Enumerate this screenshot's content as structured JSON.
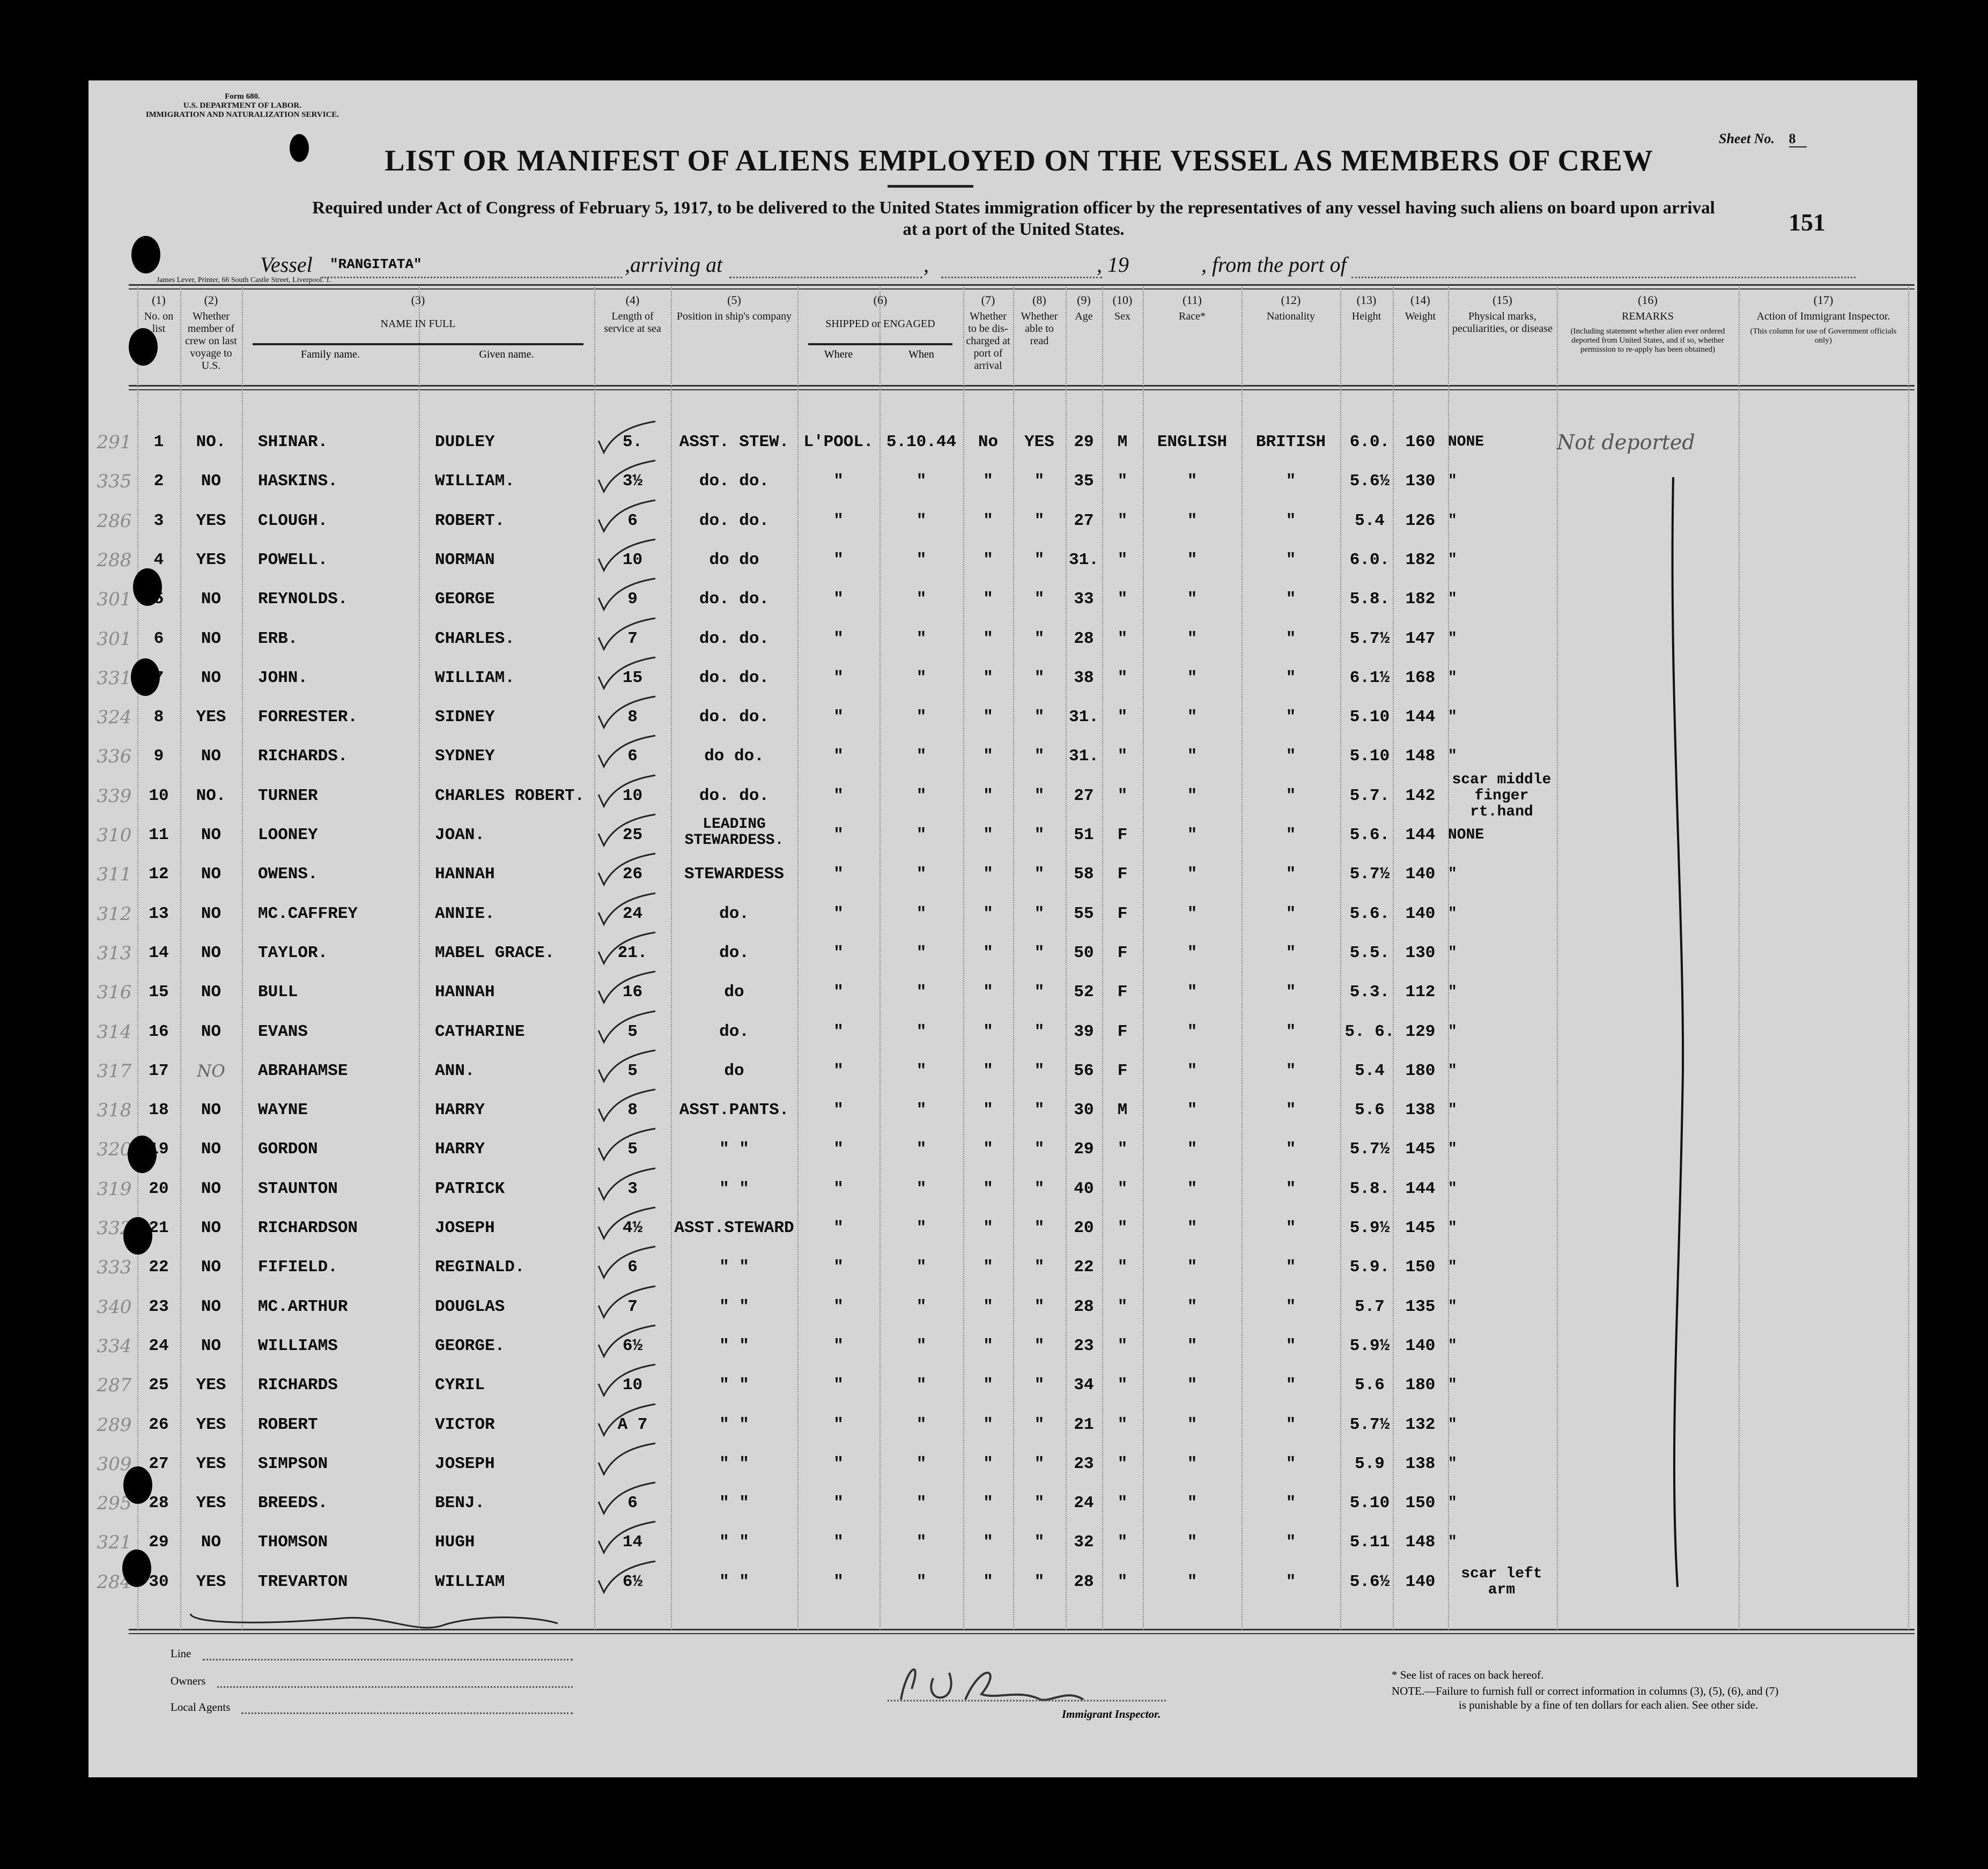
{
  "form": {
    "form_no": "Form 680.",
    "department": "U.S. DEPARTMENT OF LABOR.",
    "service": "IMMIGRATION AND NATURALIZATION SERVICE.",
    "sheet_label": "Sheet No.",
    "sheet_no": "8",
    "page_number": "151",
    "title": "LIST OR MANIFEST OF ALIENS EMPLOYED ON THE VESSEL AS MEMBERS OF CREW",
    "subtitle_1": "Required under Act of Congress of February 5, 1917, to be delivered to the United States immigration officer by the representatives of any vessel having such aliens on board upon arrival",
    "subtitle_2": "at a port of the United States.",
    "vessel_label": "Vessel",
    "vessel_name": "\"RANGITATA\"",
    "arriving_label": ",arriving at",
    "comma": ",",
    "year_label": ", 19",
    "from_port_label": ", from the port of",
    "printer": "James Lever, Printer, 66 South Castle Street, Liverpool. 1."
  },
  "header": {
    "columns": [
      {
        "num": "(1)",
        "label": "No. on list"
      },
      {
        "num": "(2)",
        "label": "Whether member of crew on last voyage to U.S."
      },
      {
        "num": "(3)",
        "label": "NAME IN FULL",
        "sub": [
          "Family name.",
          "Given name."
        ]
      },
      {
        "num": "(4)",
        "label": "Length of service at sea"
      },
      {
        "num": "(5)",
        "label": "Position in ship's company"
      },
      {
        "num": "(6)",
        "label": "SHIPPED or ENGAGED",
        "sub": [
          "Where",
          "When"
        ]
      },
      {
        "num": "(7)",
        "label": "Whether to be dis-charged at port of arrival"
      },
      {
        "num": "(8)",
        "label": "Whether able to read"
      },
      {
        "num": "(9)",
        "label": "Age"
      },
      {
        "num": "(10)",
        "label": "Sex"
      },
      {
        "num": "(11)",
        "label": "Race*"
      },
      {
        "num": "(12)",
        "label": "Nationality"
      },
      {
        "num": "(13)",
        "label": "Height"
      },
      {
        "num": "(14)",
        "label": "Weight"
      },
      {
        "num": "(15)",
        "label": "Physical marks, peculiarities, or disease"
      },
      {
        "num": "(16)",
        "label": "REMARKS",
        "note": "(Including statement whether alien ever ordered deported from United States, and if so, whether permission to re-apply has been obtained)"
      },
      {
        "num": "(17)",
        "label": "Action of Immigrant Inspector.",
        "note": "(This column for use of Government officials only)"
      }
    ]
  },
  "rows": [
    {
      "margin": "291",
      "no": "1",
      "prev": "NO.",
      "family": "SHINAR.",
      "given": "DUDLEY",
      "service": "5.",
      "position": "ASST. STEW.",
      "where": "L'POOL.",
      "when": "5.10.44",
      "disch": "No",
      "read": "YES",
      "age": "29",
      "sex": "M",
      "race": "ENGLISH",
      "nat": "BRITISH",
      "height": "6.0.",
      "weight": "160",
      "marks": "NONE",
      "remarks": "Not deported"
    },
    {
      "margin": "335",
      "no": "2",
      "prev": "NO",
      "family": "HASKINS.",
      "given": "WILLIAM.",
      "service": "3½",
      "position": "do. do.",
      "where": "\"",
      "when": "\"",
      "disch": "\"",
      "read": "\"",
      "age": "35",
      "sex": "\"",
      "race": "\"",
      "nat": "\"",
      "height": "5.6½",
      "weight": "130",
      "marks": "\"",
      "remarks": ""
    },
    {
      "margin": "286",
      "no": "3",
      "prev": "YES",
      "family": "CLOUGH.",
      "given": "ROBERT.",
      "service": "6",
      "position": "do. do.",
      "where": "\"",
      "when": "\"",
      "disch": "\"",
      "read": "\"",
      "age": "27",
      "sex": "\"",
      "race": "\"",
      "nat": "\"",
      "height": "5.4",
      "weight": "126",
      "marks": "\"",
      "remarks": ""
    },
    {
      "margin": "288",
      "no": "4",
      "prev": "YES",
      "family": "POWELL.",
      "given": "NORMAN",
      "service": "10",
      "position": "do do",
      "where": "\"",
      "when": "\"",
      "disch": "\"",
      "read": "\"",
      "age": "31.",
      "sex": "\"",
      "race": "\"",
      "nat": "\"",
      "height": "6.0.",
      "weight": "182",
      "marks": "\"",
      "remarks": ""
    },
    {
      "margin": "301",
      "no": "5",
      "prev": "NO",
      "family": "REYNOLDS.",
      "given": "GEORGE",
      "service": "9",
      "position": "do. do.",
      "where": "\"",
      "when": "\"",
      "disch": "\"",
      "read": "\"",
      "age": "33",
      "sex": "\"",
      "race": "\"",
      "nat": "\"",
      "height": "5.8.",
      "weight": "182",
      "marks": "\"",
      "remarks": ""
    },
    {
      "margin": "301",
      "no": "6",
      "prev": "NO",
      "family": "ERB.",
      "given": "CHARLES.",
      "service": "7",
      "position": "do. do.",
      "where": "\"",
      "when": "\"",
      "disch": "\"",
      "read": "\"",
      "age": "28",
      "sex": "\"",
      "race": "\"",
      "nat": "\"",
      "height": "5.7½",
      "weight": "147",
      "marks": "\"",
      "remarks": ""
    },
    {
      "margin": "331",
      "no": "7",
      "prev": "NO",
      "family": "JOHN.",
      "given": "WILLIAM.",
      "service": "15",
      "position": "do. do.",
      "where": "\"",
      "when": "\"",
      "disch": "\"",
      "read": "\"",
      "age": "38",
      "sex": "\"",
      "race": "\"",
      "nat": "\"",
      "height": "6.1½",
      "weight": "168",
      "marks": "\"",
      "remarks": ""
    },
    {
      "margin": "324",
      "no": "8",
      "prev": "YES",
      "family": "FORRESTER.",
      "given": "SIDNEY",
      "service": "8",
      "position": "do. do.",
      "where": "\"",
      "when": "\"",
      "disch": "\"",
      "read": "\"",
      "age": "31.",
      "sex": "\"",
      "race": "\"",
      "nat": "\"",
      "height": "5.10",
      "weight": "144",
      "marks": "\"",
      "remarks": ""
    },
    {
      "margin": "336",
      "no": "9",
      "prev": "NO",
      "family": "RICHARDS.",
      "given": "SYDNEY",
      "service": "6",
      "position": "do do.",
      "where": "\"",
      "when": "\"",
      "disch": "\"",
      "read": "\"",
      "age": "31.",
      "sex": "\"",
      "race": "\"",
      "nat": "\"",
      "height": "5.10",
      "weight": "148",
      "marks": "\"",
      "remarks": ""
    },
    {
      "margin": "339",
      "no": "10",
      "prev": "NO.",
      "family": "TURNER",
      "given": "CHARLES ROBERT.",
      "service": "10",
      "position": "do. do.",
      "where": "\"",
      "when": "\"",
      "disch": "\"",
      "read": "\"",
      "age": "27",
      "sex": "\"",
      "race": "\"",
      "nat": "\"",
      "height": "5.7.",
      "weight": "142",
      "marks": "scar middle\nfinger rt.hand",
      "remarks": ""
    },
    {
      "margin": "310",
      "no": "11",
      "prev": "NO",
      "family": "LOONEY",
      "given": "JOAN.",
      "service": "25",
      "position": "LEADING\nSTEWARDESS.",
      "where": "\"",
      "when": "\"",
      "disch": "\"",
      "read": "\"",
      "age": "51",
      "sex": "F",
      "race": "\"",
      "nat": "\"",
      "height": "5.6.",
      "weight": "144",
      "marks": "NONE",
      "remarks": ""
    },
    {
      "margin": "311",
      "no": "12",
      "prev": "NO",
      "family": "OWENS.",
      "given": "HANNAH",
      "service": "26",
      "position": "STEWARDESS",
      "where": "\"",
      "when": "\"",
      "disch": "\"",
      "read": "\"",
      "age": "58",
      "sex": "F",
      "race": "\"",
      "nat": "\"",
      "height": "5.7½",
      "weight": "140",
      "marks": "\"",
      "remarks": ""
    },
    {
      "margin": "312",
      "no": "13",
      "prev": "NO",
      "family": "MC.CAFFREY",
      "given": "ANNIE.",
      "service": "24",
      "position": "do.",
      "where": "\"",
      "when": "\"",
      "disch": "\"",
      "read": "\"",
      "age": "55",
      "sex": "F",
      "race": "\"",
      "nat": "\"",
      "height": "5.6.",
      "weight": "140",
      "marks": "\"",
      "remarks": ""
    },
    {
      "margin": "313",
      "no": "14",
      "prev": "NO",
      "family": "TAYLOR.",
      "given": "MABEL GRACE.",
      "service": "21.",
      "position": "do.",
      "where": "\"",
      "when": "\"",
      "disch": "\"",
      "read": "\"",
      "age": "50",
      "sex": "F",
      "race": "\"",
      "nat": "\"",
      "height": "5.5.",
      "weight": "130",
      "marks": "\"",
      "remarks": ""
    },
    {
      "margin": "316",
      "no": "15",
      "prev": "NO",
      "family": "BULL",
      "given": "HANNAH",
      "service": "16",
      "position": "do",
      "where": "\"",
      "when": "\"",
      "disch": "\"",
      "read": "\"",
      "age": "52",
      "sex": "F",
      "race": "\"",
      "nat": "\"",
      "height": "5.3.",
      "weight": "112",
      "marks": "\"",
      "remarks": ""
    },
    {
      "margin": "314",
      "no": "16",
      "prev": "NO",
      "family": "EVANS",
      "given": "CATHARINE",
      "service": "5",
      "position": "do.",
      "where": "\"",
      "when": "\"",
      "disch": "\"",
      "read": "\"",
      "age": "39",
      "sex": "F",
      "race": "\"",
      "nat": "\"",
      "height": "5. 6.",
      "weight": "129",
      "marks": "\"",
      "remarks": ""
    },
    {
      "margin": "317",
      "no": "17",
      "prev": "NO",
      "family": "ABRAHAMSE",
      "given": "ANN.",
      "service": "5",
      "position": "do",
      "where": "\"",
      "when": "\"",
      "disch": "\"",
      "read": "\"",
      "age": "56",
      "sex": "F",
      "race": "\"",
      "nat": "\"",
      "height": "5.4",
      "weight": "180",
      "marks": "\"",
      "remarks": ""
    },
    {
      "margin": "318",
      "no": "18",
      "prev": "NO",
      "family": "WAYNE",
      "given": "HARRY",
      "service": "8",
      "position": "ASST.PANTS.",
      "where": "\"",
      "when": "\"",
      "disch": "\"",
      "read": "\"",
      "age": "30",
      "sex": "M",
      "race": "\"",
      "nat": "\"",
      "height": "5.6",
      "weight": "138",
      "marks": "\"",
      "remarks": ""
    },
    {
      "margin": "320",
      "no": "19",
      "prev": "NO",
      "family": "GORDON",
      "given": "HARRY",
      "service": "5",
      "position": "\"    \"",
      "where": "\"",
      "when": "\"",
      "disch": "\"",
      "read": "\"",
      "age": "29",
      "sex": "\"",
      "race": "\"",
      "nat": "\"",
      "height": "5.7½",
      "weight": "145",
      "marks": "\"",
      "remarks": ""
    },
    {
      "margin": "319",
      "no": "20",
      "prev": "NO",
      "family": "STAUNTON",
      "given": "PATRICK",
      "service": "3",
      "position": "\"    \"",
      "where": "\"",
      "when": "\"",
      "disch": "\"",
      "read": "\"",
      "age": "40",
      "sex": "\"",
      "race": "\"",
      "nat": "\"",
      "height": "5.8.",
      "weight": "144",
      "marks": "\"",
      "remarks": ""
    },
    {
      "margin": "332",
      "no": "21",
      "prev": "NO",
      "family": "RICHARDSON",
      "given": "JOSEPH",
      "service": "4½",
      "position": "ASST.STEWARD",
      "where": "\"",
      "when": "\"",
      "disch": "\"",
      "read": "\"",
      "age": "20",
      "sex": "\"",
      "race": "\"",
      "nat": "\"",
      "height": "5.9½",
      "weight": "145",
      "marks": "\"",
      "remarks": ""
    },
    {
      "margin": "333",
      "no": "22",
      "prev": "NO",
      "family": "FIFIELD.",
      "given": "REGINALD.",
      "service": "6",
      "position": "\"    \"",
      "where": "\"",
      "when": "\"",
      "disch": "\"",
      "read": "\"",
      "age": "22",
      "sex": "\"",
      "race": "\"",
      "nat": "\"",
      "height": "5.9.",
      "weight": "150",
      "marks": "\"",
      "remarks": ""
    },
    {
      "margin": "340",
      "no": "23",
      "prev": "NO",
      "family": "MC.ARTHUR",
      "given": "DOUGLAS",
      "service": "7",
      "position": "\"    \"",
      "where": "\"",
      "when": "\"",
      "disch": "\"",
      "read": "\"",
      "age": "28",
      "sex": "\"",
      "race": "\"",
      "nat": "\"",
      "height": "5.7",
      "weight": "135",
      "marks": "\"",
      "remarks": ""
    },
    {
      "margin": "334",
      "no": "24",
      "prev": "NO",
      "family": "WILLIAMS",
      "given": "GEORGE.",
      "service": "6½",
      "position": "\"    \"",
      "where": "\"",
      "when": "\"",
      "disch": "\"",
      "read": "\"",
      "age": "23",
      "sex": "\"",
      "race": "\"",
      "nat": "\"",
      "height": "5.9½",
      "weight": "140",
      "marks": "\"",
      "remarks": ""
    },
    {
      "margin": "287",
      "no": "25",
      "prev": "YES",
      "family": "RICHARDS",
      "given": "CYRIL",
      "service": "10",
      "position": "\"    \"",
      "where": "\"",
      "when": "\"",
      "disch": "\"",
      "read": "\"",
      "age": "34",
      "sex": "\"",
      "race": "\"",
      "nat": "\"",
      "height": "5.6",
      "weight": "180",
      "marks": "\"",
      "remarks": ""
    },
    {
      "margin": "289",
      "no": "26",
      "prev": "YES",
      "family": "ROBERT",
      "given": "VICTOR",
      "service": "A 7",
      "position": "\"    \"",
      "where": "\"",
      "when": "\"",
      "disch": "\"",
      "read": "\"",
      "age": "21",
      "sex": "\"",
      "race": "\"",
      "nat": "\"",
      "height": "5.7½",
      "weight": "132",
      "marks": "\"",
      "remarks": ""
    },
    {
      "margin": "309",
      "no": "27",
      "prev": "YES",
      "family": "SIMPSON",
      "given": "JOSEPH",
      "service": "",
      "position": "\"    \"",
      "where": "\"",
      "when": "\"",
      "disch": "\"",
      "read": "\"",
      "age": "23",
      "sex": "\"",
      "race": "\"",
      "nat": "\"",
      "height": "5.9",
      "weight": "138",
      "marks": "\"",
      "remarks": ""
    },
    {
      "margin": "295",
      "no": "28",
      "prev": "YES",
      "family": "BREEDS.",
      "given": "BENJ.",
      "service": "6",
      "position": "\"    \"",
      "where": "\"",
      "when": "\"",
      "disch": "\"",
      "read": "\"",
      "age": "24",
      "sex": "\"",
      "race": "\"",
      "nat": "\"",
      "height": "5.10",
      "weight": "150",
      "marks": "\"",
      "remarks": ""
    },
    {
      "margin": "321",
      "no": "29",
      "prev": "NO",
      "family": "THOMSON",
      "given": "HUGH",
      "service": "14",
      "position": "\"    \"",
      "where": "\"",
      "when": "\"",
      "disch": "\"",
      "read": "\"",
      "age": "32",
      "sex": "\"",
      "race": "\"",
      "nat": "\"",
      "height": "5.11",
      "weight": "148",
      "marks": "\"",
      "remarks": ""
    },
    {
      "margin": "284",
      "no": "30",
      "prev": "YES",
      "family": "TREVARTON",
      "given": "WILLIAM",
      "service": "6½",
      "position": "\"    \"",
      "where": "\"",
      "when": "\"",
      "disch": "\"",
      "read": "\"",
      "age": "28",
      "sex": "\"",
      "race": "\"",
      "nat": "\"",
      "height": "5.6½",
      "weight": "140",
      "marks": "scar left arm",
      "remarks": ""
    }
  ],
  "footer": {
    "line_label": "Line",
    "owners_label": "Owners",
    "agents_label": "Local Agents",
    "inspector_label": "Immigrant Inspector.",
    "races_note": "* See list of races on back hereof.",
    "note_1": "NOTE.—Failure to furnish full or correct information in columns (3), (5), (6), and (7)",
    "note_2": "is punishable by a fine of ten dollars for each alien.  See other side."
  }
}
